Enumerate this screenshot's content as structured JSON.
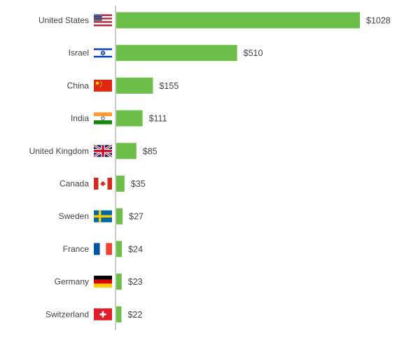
{
  "chart_data": {
    "type": "bar",
    "orientation": "horizontal",
    "categories": [
      "United States",
      "Israel",
      "China",
      "India",
      "United Kingdom",
      "Canada",
      "Sweden",
      "France",
      "Germany",
      "Switzerland"
    ],
    "values": [
      1028,
      510,
      155,
      111,
      85,
      35,
      27,
      24,
      23,
      22
    ],
    "value_labels": [
      "$1028",
      "$510",
      "$155",
      "$111",
      "$85",
      "$35",
      "$27",
      "$24",
      "$23",
      "$22"
    ],
    "flags": [
      "us-flag-icon",
      "israel-flag-icon",
      "china-flag-icon",
      "india-flag-icon",
      "uk-flag-icon",
      "canada-flag-icon",
      "sweden-flag-icon",
      "france-flag-icon",
      "germany-flag-icon",
      "switzerland-flag-icon"
    ],
    "bar_color": "#6cc04a",
    "axis_color": "#999999",
    "xlim": [
      0,
      1028
    ],
    "grid": false,
    "legend": "none"
  }
}
